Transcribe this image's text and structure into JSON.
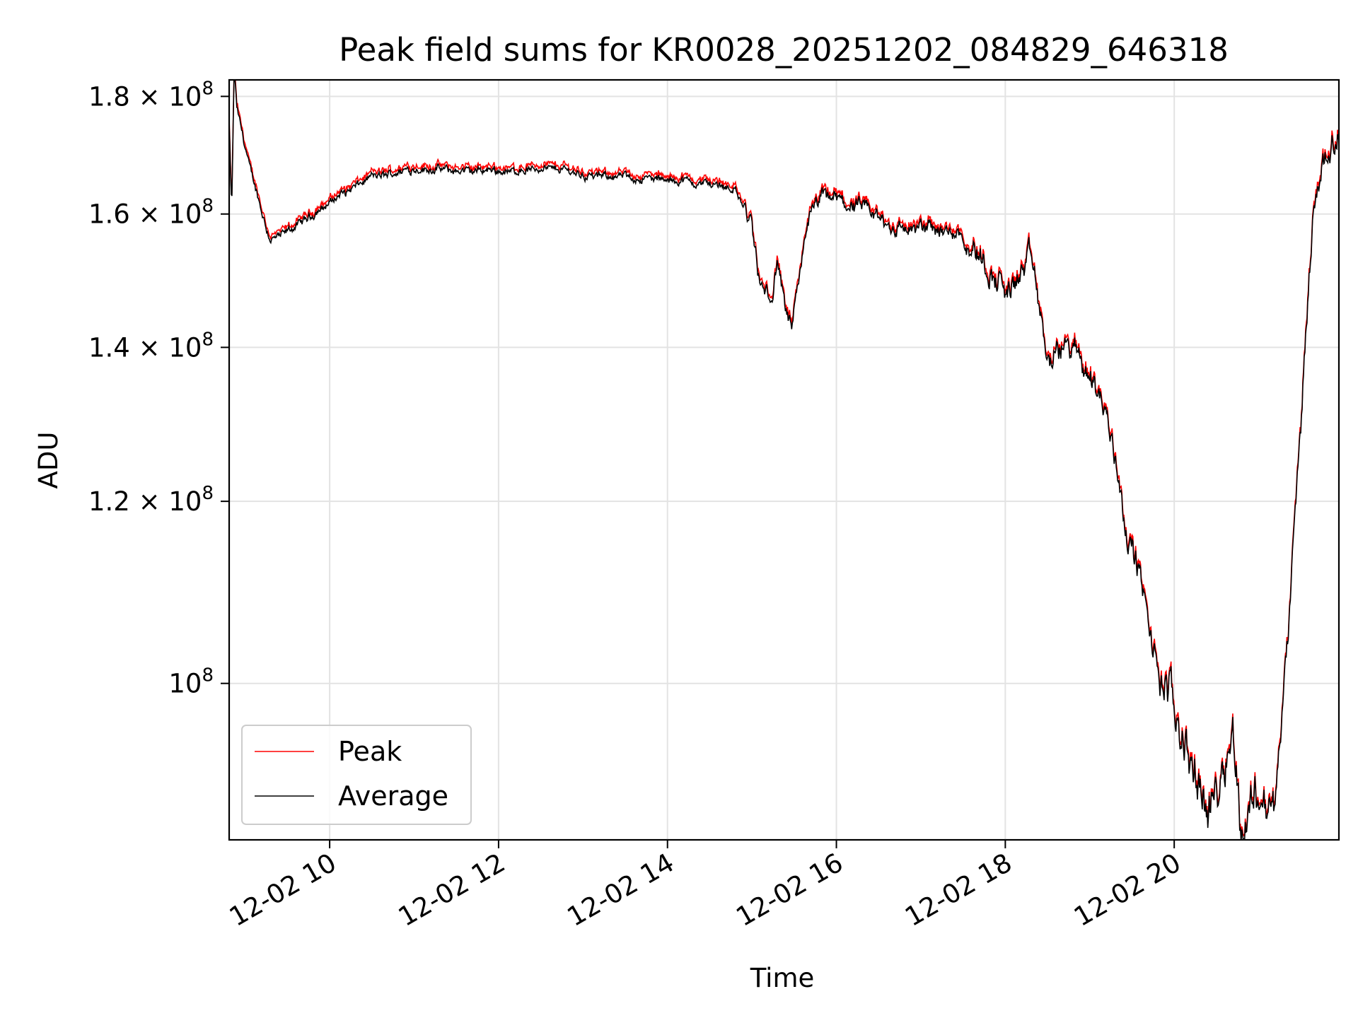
{
  "chart_data": {
    "type": "line",
    "title": "Peak field sums for KR0028_20251202_084829_646318",
    "xlabel": "Time",
    "ylabel": "ADU",
    "yscale": "log",
    "xlim": [
      8.81,
      21.95
    ],
    "ylim": [
      85500000,
      183000000
    ],
    "grid": true,
    "legend_position": "lower-left",
    "x_ticks": [
      {
        "value": 10,
        "label": "12-02 10"
      },
      {
        "value": 12,
        "label": "12-02 12"
      },
      {
        "value": 14,
        "label": "12-02 14"
      },
      {
        "value": 16,
        "label": "12-02 16"
      },
      {
        "value": 18,
        "label": "12-02 18"
      },
      {
        "value": 20,
        "label": "12-02 20"
      }
    ],
    "y_ticks": [
      {
        "value": 100000000,
        "mantissa": "10",
        "exponent": "8"
      },
      {
        "value": 120000000,
        "mantissa": "1.2 × 10",
        "exponent": "8"
      },
      {
        "value": 140000000,
        "mantissa": "1.4 × 10",
        "exponent": "8"
      },
      {
        "value": 160000000,
        "mantissa": "1.6 × 10",
        "exponent": "8"
      },
      {
        "value": 180000000,
        "mantissa": "1.8 × 10",
        "exponent": "8"
      }
    ],
    "series": [
      {
        "name": "Peak",
        "color": "#ff0000",
        "x_start": 8.81,
        "x_end": 21.95,
        "keypoints": [
          [
            8.81,
            175000000
          ],
          [
            8.84,
            160000000
          ],
          [
            8.87,
            185000000
          ],
          [
            8.9,
            178000000
          ],
          [
            9.05,
            168000000
          ],
          [
            9.2,
            160000000
          ],
          [
            9.3,
            156000000
          ],
          [
            9.6,
            158000000
          ],
          [
            10.0,
            162000000
          ],
          [
            10.5,
            166000000
          ],
          [
            11.0,
            167500000
          ],
          [
            11.5,
            167000000
          ],
          [
            12.0,
            167000000
          ],
          [
            12.5,
            167500000
          ],
          [
            13.0,
            166500000
          ],
          [
            13.5,
            166000000
          ],
          [
            14.0,
            165500000
          ],
          [
            14.5,
            165000000
          ],
          [
            14.8,
            164000000
          ],
          [
            15.0,
            158000000
          ],
          [
            15.1,
            149000000
          ],
          [
            15.25,
            147000000
          ],
          [
            15.3,
            152000000
          ],
          [
            15.4,
            145000000
          ],
          [
            15.47,
            143000000
          ],
          [
            15.55,
            148000000
          ],
          [
            15.65,
            158000000
          ],
          [
            15.8,
            162000000
          ],
          [
            16.0,
            162000000
          ],
          [
            16.2,
            161000000
          ],
          [
            16.5,
            159000000
          ],
          [
            16.8,
            157500000
          ],
          [
            17.2,
            158000000
          ],
          [
            17.5,
            157000000
          ],
          [
            17.7,
            153000000
          ],
          [
            17.85,
            150000000
          ],
          [
            18.0,
            148500000
          ],
          [
            18.2,
            151000000
          ],
          [
            18.3,
            154000000
          ],
          [
            18.4,
            146000000
          ],
          [
            18.5,
            138000000
          ],
          [
            18.7,
            140000000
          ],
          [
            18.9,
            138500000
          ],
          [
            19.1,
            135000000
          ],
          [
            19.3,
            126000000
          ],
          [
            19.45,
            116000000
          ],
          [
            19.6,
            112000000
          ],
          [
            19.75,
            103000000
          ],
          [
            19.95,
            99000000
          ],
          [
            20.1,
            96000000
          ],
          [
            20.3,
            90000000
          ],
          [
            20.4,
            87000000
          ],
          [
            20.55,
            91000000
          ],
          [
            20.7,
            95000000
          ],
          [
            20.8,
            86000000
          ],
          [
            20.95,
            90000000
          ],
          [
            21.1,
            88000000
          ],
          [
            21.2,
            89000000
          ],
          [
            21.35,
            105000000
          ],
          [
            21.5,
            130000000
          ],
          [
            21.65,
            162000000
          ],
          [
            21.8,
            170000000
          ],
          [
            21.95,
            172000000
          ]
        ]
      },
      {
        "name": "Average",
        "color": "#000000"
      }
    ]
  }
}
